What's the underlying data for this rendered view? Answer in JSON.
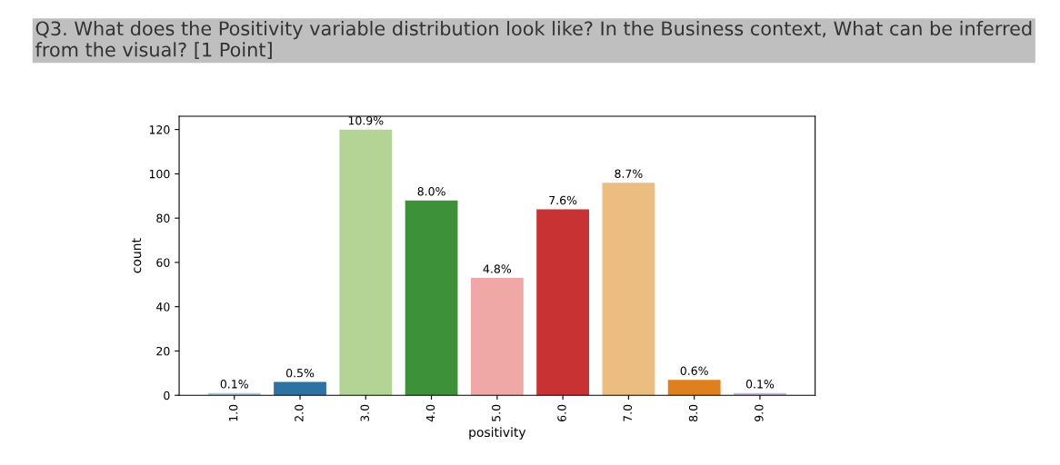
{
  "chart_data": {
    "type": "bar",
    "title": "Q3. What does the Positivity variable distribution look like? In the Business context, What can be inferred from the visual? [1 Point]",
    "xlabel": "positivity",
    "ylabel": "count",
    "categories": [
      "1.0",
      "2.0",
      "3.0",
      "4.0",
      "5.0",
      "6.0",
      "7.0",
      "8.0",
      "9.0"
    ],
    "values": [
      1,
      6,
      120,
      88,
      53,
      84,
      96,
      7,
      1
    ],
    "annotations": [
      {
        "text": "0.1%",
        "x": "1.0",
        "y": 1
      },
      {
        "text": "0.5%",
        "x": "2.0",
        "y": 6
      },
      {
        "text": "10.9%",
        "x": "3.0",
        "y": 120
      },
      {
        "text": "8.0%",
        "x": "4.0",
        "y": 88
      },
      {
        "text": "4.8%",
        "x": "5.0",
        "y": 53
      },
      {
        "text": "7.6%",
        "x": "6.0",
        "y": 84
      },
      {
        "text": "8.7%",
        "x": "7.0",
        "y": 96
      },
      {
        "text": "0.6%",
        "x": "8.0",
        "y": 7
      },
      {
        "text": "0.1%",
        "x": "9.0",
        "y": 1
      }
    ],
    "colors": [
      "#b0cbd9",
      "#2d72a3",
      "#b3d494",
      "#3d9139",
      "#f0a8a7",
      "#c83232",
      "#ecbd80",
      "#e07f1d",
      "#c8b8d4"
    ],
    "ylim": [
      0,
      126
    ],
    "yticks": [
      0,
      20,
      40,
      60,
      80,
      100,
      120
    ],
    "grid": false,
    "legend": false
  }
}
